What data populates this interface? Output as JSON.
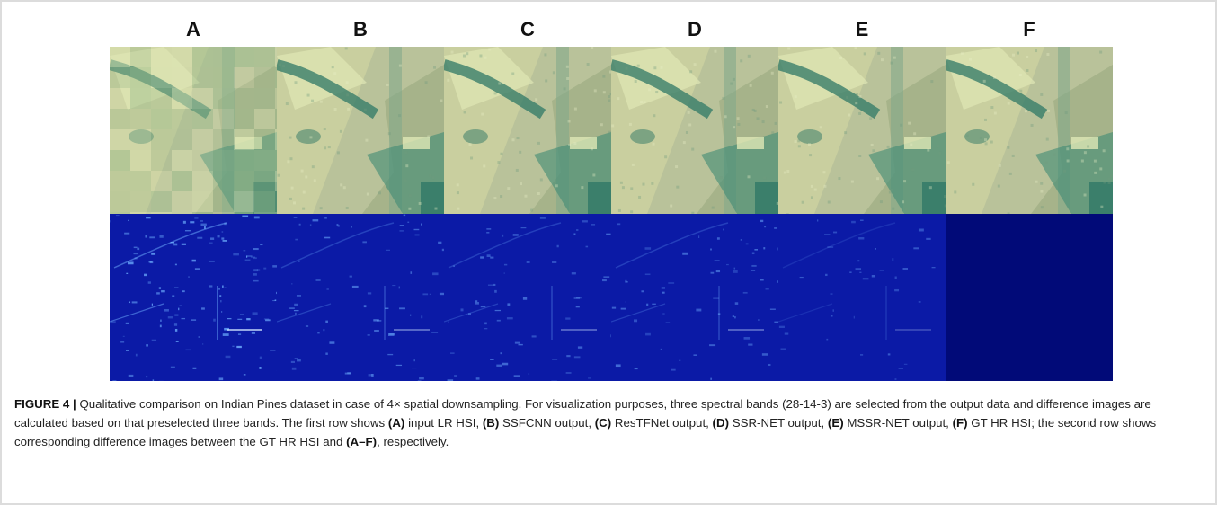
{
  "figure": {
    "column_labels": [
      "A",
      "B",
      "C",
      "D",
      "E",
      "F"
    ],
    "colors": {
      "rgb_base": "#b9c29a",
      "rgb_field_light": "#dfe7b5",
      "rgb_field_dark": "#2f7866",
      "diff_bg": "#0b1aa6",
      "diff_highlight": "#6fb0ff",
      "diff_zero": "#010a78"
    },
    "caption": {
      "label": "FIGURE 4 |",
      "s1": " Qualitative comparison on Indian Pines dataset in case of 4× spatial downsampling. For visualization purposes, three spectral bands (28-14-3) are selected from the output data and difference images are calculated based on that preselected three bands. The first row shows ",
      "mA": "(A)",
      "tA": " input LR HSI, ",
      "mB": "(B)",
      "tB": " SSFCNN output, ",
      "mC": "(C)",
      "tC": " ResTFNet output, ",
      "mD": "(D)",
      "tD": " SSR-NET output, ",
      "mE": "(E)",
      "tE": " MSSR-NET output, ",
      "mF": "(F)",
      "tF": " GT HR HSI; the second row shows corresponding difference images between the GT HR HSI and ",
      "mAF": "(A–F)",
      "tEnd": ", respectively."
    }
  }
}
